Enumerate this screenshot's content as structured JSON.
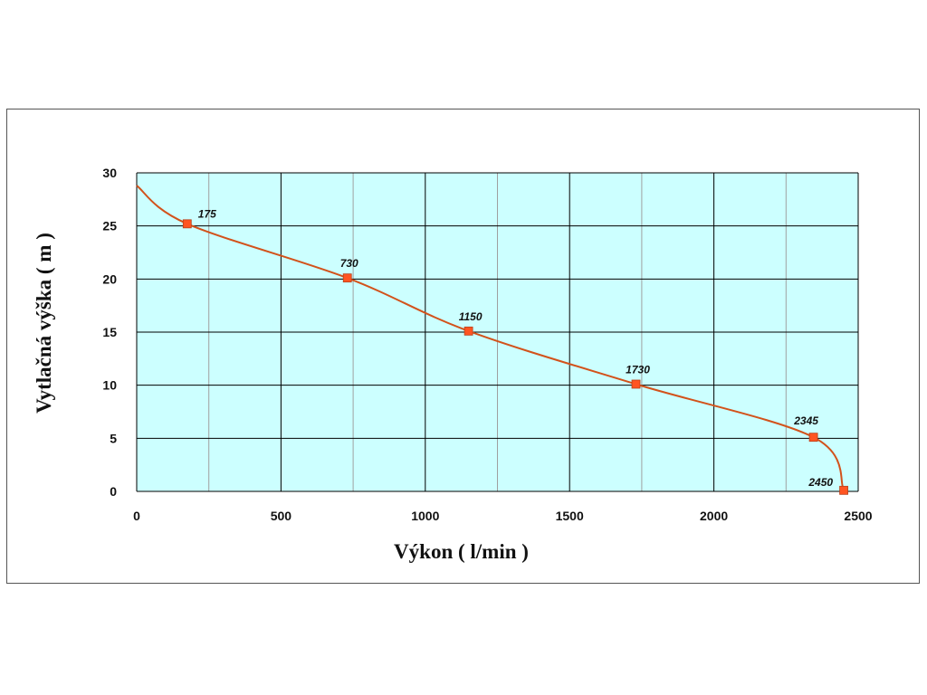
{
  "colors": {
    "plot_background": "#ccffff",
    "major_grid": "#000000",
    "minor_grid": "#a0a0a0",
    "curve": "#d2521b",
    "marker": "#ff5522"
  },
  "chart_data": {
    "type": "line",
    "xlabel": "Výkon ( l/min )",
    "ylabel": "Vytlačná výška ( m )",
    "xlim": [
      0,
      2500
    ],
    "ylim": [
      0,
      30
    ],
    "x_ticks": [
      0,
      500,
      1000,
      1500,
      2000,
      2500
    ],
    "y_ticks": [
      0,
      5,
      10,
      15,
      20,
      25,
      30
    ],
    "x_minor_ticks": [
      250,
      750,
      1250,
      1750,
      2250
    ],
    "grid": true,
    "curve_start": {
      "x": 0,
      "y": 28.8
    },
    "series": [
      {
        "points": [
          {
            "x": 175,
            "y": 25.2,
            "label": "175"
          },
          {
            "x": 730,
            "y": 20.1,
            "label": "730"
          },
          {
            "x": 1150,
            "y": 15.1,
            "label": "1150"
          },
          {
            "x": 1730,
            "y": 10.1,
            "label": "1730"
          },
          {
            "x": 2345,
            "y": 5.1,
            "label": "2345"
          },
          {
            "x": 2450,
            "y": 0.1,
            "label": "2450"
          }
        ]
      }
    ]
  }
}
